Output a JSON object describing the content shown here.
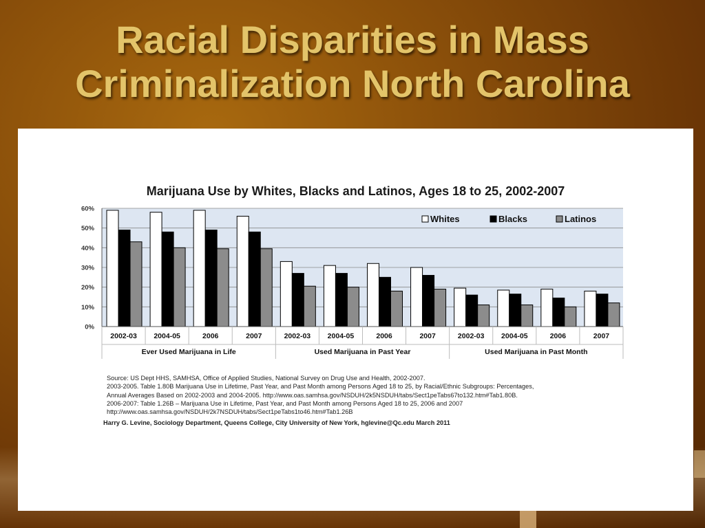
{
  "slide": {
    "title_line1": "Racial Disparities in Mass",
    "title_line2": "Criminalization North Carolina"
  },
  "chart_data": {
    "type": "bar",
    "title": "Marijuana Use by Whites, Blacks and Latinos, Ages 18 to 25, 2002-2007",
    "y_ticks": [
      "0%",
      "10%",
      "20%",
      "30%",
      "40%",
      "50%",
      "60%"
    ],
    "ylim": [
      0,
      60
    ],
    "grid": true,
    "legend_position": "top-right",
    "categories": [
      "2002-03",
      "2004-05",
      "2006",
      "2007",
      "2002-03",
      "2004-05",
      "2006",
      "2007",
      "2002-03",
      "2004-05",
      "2006",
      "2007"
    ],
    "groups": [
      "Ever Used Marijuana in Life",
      "Used Marijuana in Past Year",
      "Used Marijuana in Past Month"
    ],
    "series": [
      {
        "name": "Whites",
        "color": "#ffffff",
        "values": [
          59,
          58,
          59,
          56,
          33,
          31,
          32,
          30,
          19.5,
          18.5,
          19,
          18
        ]
      },
      {
        "name": "Blacks",
        "color": "#000000",
        "values": [
          49,
          48,
          49,
          48,
          27,
          27,
          25,
          26,
          16,
          16.5,
          14.5,
          16.5
        ]
      },
      {
        "name": "Latinos",
        "color": "#8c8c8c",
        "values": [
          43,
          40,
          39.5,
          39.5,
          20.5,
          20,
          18,
          19,
          11,
          11,
          10,
          12
        ]
      }
    ],
    "plot_background": "#dde6f2"
  },
  "source": {
    "line1": "Source: US Dept HHS, SAMHSA, Office of Applied Studies, National Survey on Drug Use and Health, 2002-2007.",
    "line2": "2003-2005. Table  1.80B Marijuana Use in Lifetime, Past Year, and Past Month among Persons Aged 18 to 25, by Racial/Ethnic Subgroups: Percentages,",
    "line3": "Annual Averages Based on 2002-2003 and 2004-2005. http://www.oas.samhsa.gov/NSDUH/2k5NSDUH/tabs/Sect1peTabs67to132.htm#Tab1.80B.",
    "line4": "2006-2007:  Table 1.26B – Marijuana Use in Lifetime, Past Year, and Past Month among Persons Aged 18 to 25, 2006 and 2007",
    "line5": "http://www.oas.samhsa.gov/NSDUH/2k7NSDUH/tabs/Sect1peTabs1to46.htm#Tab1.26B",
    "credit": "Harry G. Levine, Sociology Department, Queens College, City University of New York, hglevine@Qc.edu   March 2011"
  }
}
